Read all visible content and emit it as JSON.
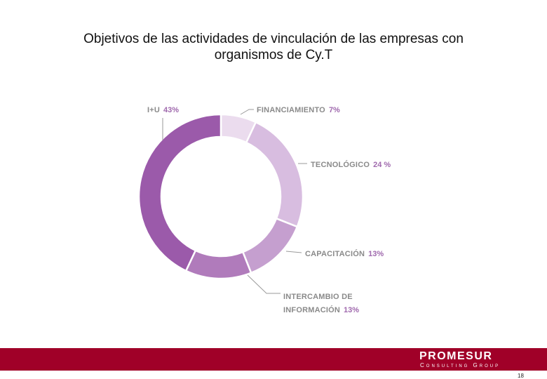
{
  "title": {
    "line1": "Objetivos de las actividades de vinculación de las empresas con",
    "line2": "organismos de Cy.T"
  },
  "chart_data": {
    "type": "pie",
    "variant": "donut",
    "title": "Objetivos de las actividades de vinculación de las empresas con organismos de Cy.T",
    "slices": [
      {
        "key": "financiamiento",
        "lines": [
          "FINANCIAMIENTO"
        ],
        "pct_label": "7%",
        "value": 7,
        "color": "#ebdcee"
      },
      {
        "key": "tecnologico",
        "lines": [
          "TECNOLÓGICO"
        ],
        "pct_label": "24 %",
        "value": 24,
        "color": "#d8bde0"
      },
      {
        "key": "capacitacion",
        "lines": [
          "CAPACITACIÓN"
        ],
        "pct_label": "13%",
        "value": 13,
        "color": "#c59fcf"
      },
      {
        "key": "intercambio",
        "lines": [
          "INTERCAMBIO DE",
          "INFORMACIÓN"
        ],
        "pct_label": "13%",
        "value": 13,
        "color": "#b07bbb"
      },
      {
        "key": "i-u",
        "lines": [
          "I+U"
        ],
        "pct_label": "43%",
        "value": 43,
        "color": "#9b5aaa"
      }
    ],
    "start": "12 o'clock",
    "direction": "clockwise",
    "label_color": "#8a8a8a",
    "pct_color": "#a06aae"
  },
  "footer": {
    "brand": "PROMESUR",
    "tagline": "Consulting Group",
    "band_color": "#a00028",
    "page_number": "18"
  }
}
